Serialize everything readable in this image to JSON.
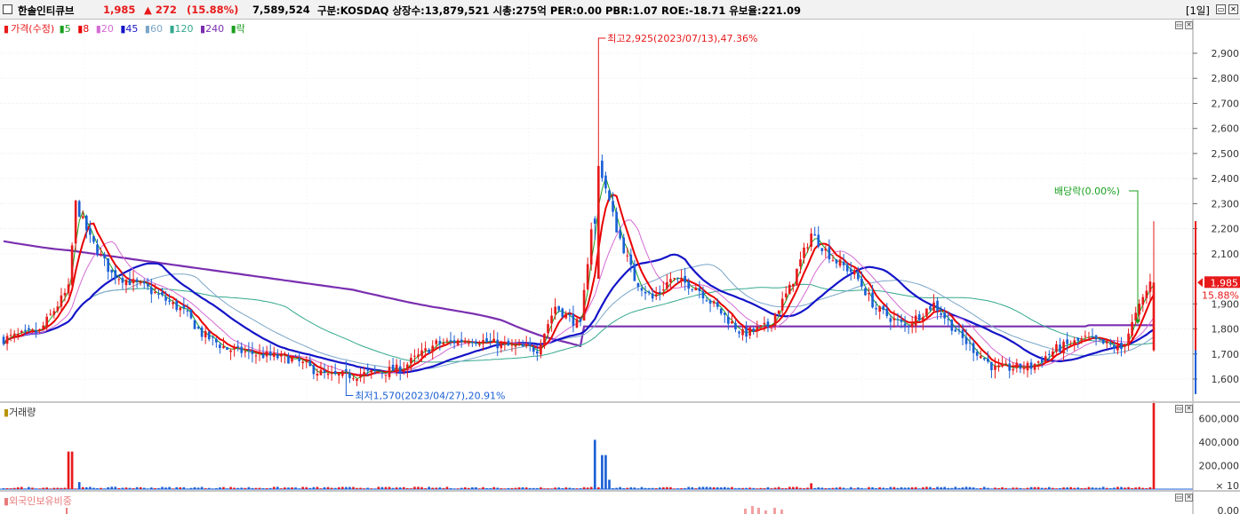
{
  "header": {
    "stock_name": "한솔인티큐브",
    "price": "1,985",
    "change": "▲ 272",
    "change_pct": "(15.88%)",
    "volume": "7,589,524",
    "info": "구분:KOSDAQ 상장수:13,879,521 시총:275억 PER:0.00 PBR:1.07 ROE:-18.71 유보율:221.09",
    "period_label": "[1일]"
  },
  "price_panel": {
    "legend": {
      "price_label": "가격(수정)",
      "ma_labels": [
        "5",
        "8",
        "20",
        "45",
        "60",
        "120",
        "240"
      ],
      "event_label": "락"
    },
    "y_axis": {
      "ticks": [
        "2,900",
        "2,800",
        "2,700",
        "2,600",
        "2,500",
        "2,400",
        "2,300",
        "2,200",
        "2,100",
        "1,900",
        "1,800",
        "1,700",
        "1,600"
      ],
      "tick_values": [
        2900,
        2800,
        2700,
        2600,
        2500,
        2400,
        2300,
        2200,
        2100,
        1900,
        1800,
        1700,
        1600
      ]
    },
    "current_price_label": "1,985",
    "current_pct_label": "15.88%",
    "annotations": {
      "high": "최고2,925(2023/07/13),47.36%",
      "low": "최저1,570(2023/04/27),20.91%",
      "dividend": "배당락(0.00%)"
    }
  },
  "volume_panel": {
    "title": "거래량",
    "y_axis": {
      "ticks": [
        "600,000",
        "400,000",
        "200,000"
      ],
      "unit": "× 10"
    }
  },
  "foreign_panel": {
    "title": "외국인보유비중",
    "y_tick_partial": "0.00"
  },
  "chart_data": {
    "type": "candlestick",
    "title": "한솔인티큐브",
    "ylim": [
      1530,
      2960
    ],
    "high_point": {
      "value": 2925,
      "date": "2023/07/13",
      "pct": 47.36
    },
    "low_point": {
      "value": 1570,
      "date": "2023/04/27",
      "pct": 20.91
    },
    "last_close": 1985,
    "moving_averages": [
      "5",
      "8",
      "20",
      "45",
      "60",
      "120",
      "240"
    ],
    "volume_ticks": [
      200000,
      400000,
      600000
    ]
  },
  "colors": {
    "up": "#e8191a",
    "down": "#1a5fd6",
    "ma5": "#19a01f",
    "ma8": "#e80000",
    "ma20": "#d56bd4",
    "ma45": "#1414c8",
    "ma60": "#7aa6c8",
    "ma120": "#33a88e",
    "ma240": "#7a2fb0",
    "volume_up": "#e8191a",
    "volume_down": "#1a5fd6"
  }
}
